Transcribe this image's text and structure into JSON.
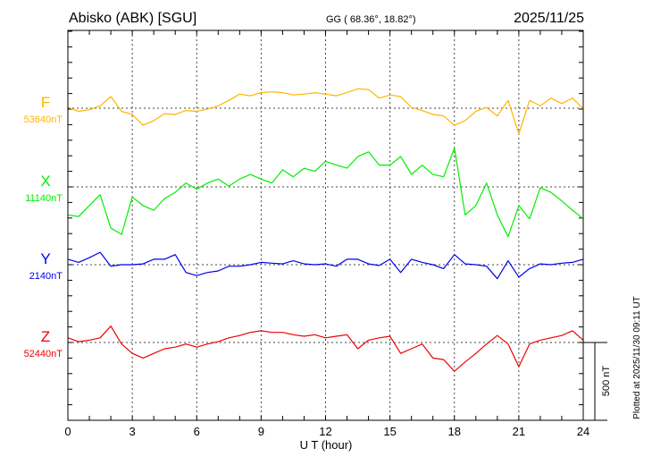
{
  "header": {
    "station": "Abisko (ABK)  [SGU]",
    "coords": "GG ( 68.36°,  18.82°)",
    "date": "2025/11/25"
  },
  "footer": {
    "plotted_at": "Plotted at 2025/11/30 09:11 UT",
    "scale_label": "500 nT"
  },
  "chart_data": {
    "type": "line",
    "title": "Abisko (ABK)  [SGU]",
    "xlabel": "U T (hour)",
    "ylabel": "",
    "xlim": [
      0,
      24
    ],
    "x_ticks": [
      "0",
      "3",
      "6",
      "9",
      "12",
      "15",
      "18",
      "21",
      "24"
    ],
    "scale_bar_nT": 500,
    "grid": true,
    "x": [
      0,
      0.5,
      1,
      1.5,
      2,
      2.5,
      3,
      3.5,
      4,
      4.5,
      5,
      5.5,
      6,
      6.5,
      7,
      7.5,
      8,
      8.5,
      9,
      9.5,
      10,
      10.5,
      11,
      11.5,
      12,
      12.5,
      13,
      13.5,
      14,
      14.5,
      15,
      15.5,
      16,
      16.5,
      17,
      17.5,
      18,
      18.5,
      19,
      19.5,
      20,
      20.5,
      21,
      21.5,
      22,
      22.5,
      23,
      23.5,
      24
    ],
    "series": [
      {
        "name": "F",
        "baseline_label": "53640nT",
        "color": "#ffb400",
        "values": [
          5,
          -20,
          -10,
          15,
          75,
          -20,
          -40,
          -110,
          -80,
          -35,
          -40,
          -15,
          -20,
          -5,
          15,
          50,
          90,
          80,
          100,
          105,
          100,
          85,
          90,
          100,
          90,
          80,
          100,
          125,
          120,
          65,
          85,
          75,
          5,
          -15,
          -40,
          -50,
          -110,
          -80,
          -20,
          5,
          -50,
          50,
          -165,
          50,
          15,
          65,
          30,
          65,
          -5
        ]
      },
      {
        "name": "X",
        "baseline_label": "11140nT",
        "color": "#00ee00",
        "values": [
          -180,
          -190,
          -120,
          -50,
          -265,
          -305,
          -65,
          -120,
          -150,
          -75,
          -35,
          25,
          -15,
          25,
          50,
          5,
          50,
          80,
          50,
          25,
          110,
          65,
          120,
          100,
          165,
          140,
          120,
          195,
          225,
          140,
          140,
          195,
          80,
          140,
          80,
          65,
          250,
          -180,
          -120,
          25,
          -180,
          -320,
          -120,
          -205,
          -5,
          -35,
          -90,
          -150,
          -205
        ]
      },
      {
        "name": "Y",
        "baseline_label": "2140nT",
        "color": "#0000ee",
        "values": [
          35,
          15,
          45,
          80,
          -10,
          0,
          0,
          5,
          35,
          35,
          65,
          -50,
          -70,
          -50,
          -40,
          -10,
          -10,
          0,
          15,
          10,
          5,
          25,
          5,
          0,
          5,
          -10,
          35,
          35,
          5,
          -5,
          35,
          -50,
          35,
          15,
          0,
          -25,
          65,
          5,
          0,
          -10,
          -90,
          25,
          -80,
          -25,
          5,
          0,
          10,
          15,
          35
        ]
      },
      {
        "name": "Z",
        "baseline_label": "52440nT",
        "color": "#ee0000",
        "values": [
          30,
          5,
          15,
          30,
          105,
          -10,
          -70,
          -100,
          -70,
          -40,
          -30,
          -10,
          -30,
          -10,
          5,
          30,
          45,
          65,
          75,
          65,
          65,
          50,
          40,
          50,
          30,
          40,
          50,
          -40,
          15,
          30,
          40,
          -70,
          -40,
          -10,
          -100,
          -110,
          -185,
          -125,
          -70,
          -10,
          45,
          -10,
          -155,
          -10,
          15,
          30,
          45,
          75,
          15
        ]
      }
    ]
  }
}
